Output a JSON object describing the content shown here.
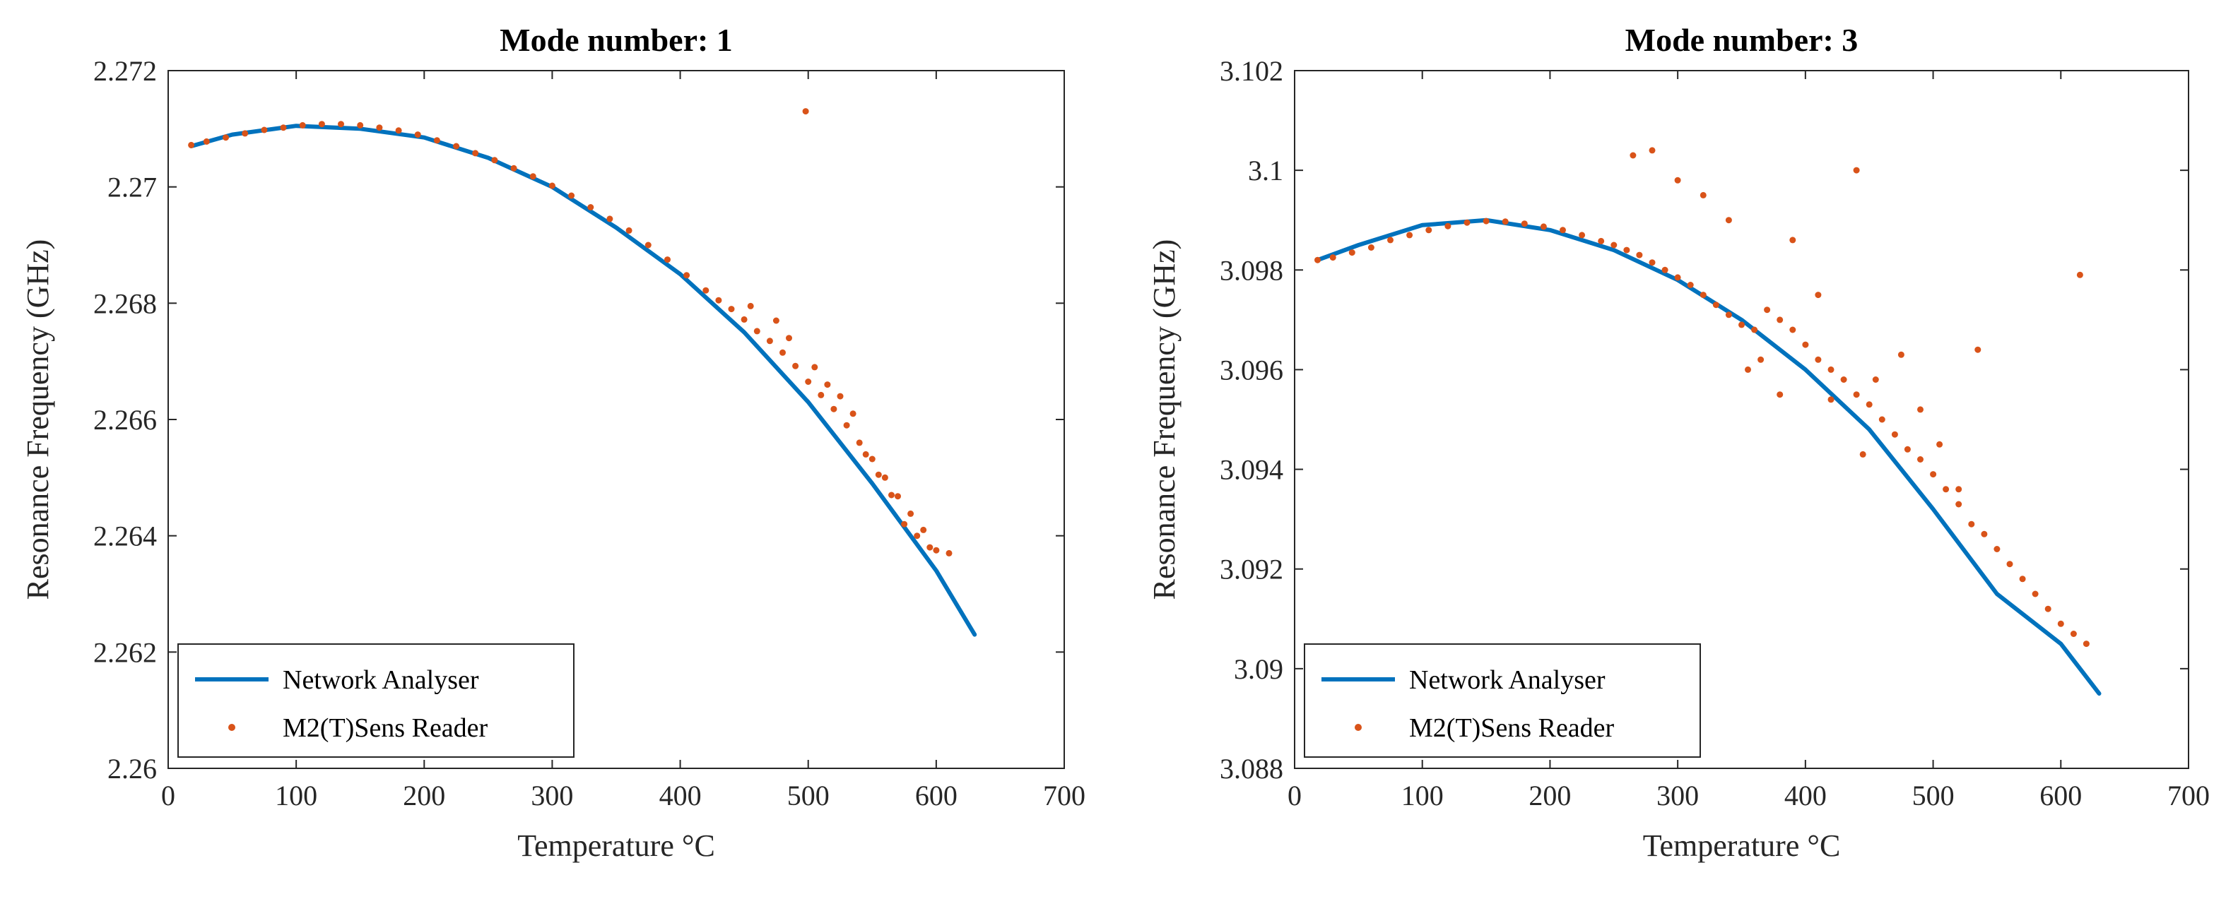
{
  "chart_data": [
    {
      "type": "line",
      "title": "Mode number: 1",
      "xlabel": "Temperature °C",
      "ylabel": "Resonance Frequency (GHz)",
      "xlim": [
        0,
        700
      ],
      "ylim": [
        2.26,
        2.272
      ],
      "xticks": [
        0,
        100,
        200,
        300,
        400,
        500,
        600,
        700
      ],
      "yticks": [
        "2.26",
        "2.262",
        "2.264",
        "2.266",
        "2.268",
        "2.27",
        "2.272"
      ],
      "grid": false,
      "legend_position": "bottom-left",
      "series": [
        {
          "name": "Network Analyser",
          "style": "line",
          "color": "#0072BD",
          "x": [
            18,
            50,
            100,
            150,
            200,
            250,
            300,
            350,
            400,
            450,
            500,
            550,
            600,
            630
          ],
          "y": [
            2.2707,
            2.2709,
            2.27105,
            2.271,
            2.27085,
            2.2705,
            2.27,
            2.2693,
            2.2685,
            2.2675,
            2.2663,
            2.2649,
            2.2634,
            2.2623
          ]
        },
        {
          "name": "M2(T)Sens Reader",
          "style": "scatter",
          "color": "#D95319",
          "x": [
            18,
            30,
            45,
            60,
            75,
            90,
            105,
            120,
            135,
            150,
            165,
            180,
            195,
            210,
            225,
            240,
            255,
            270,
            285,
            300,
            315,
            330,
            345,
            360,
            375,
            390,
            405,
            420,
            430,
            440,
            450,
            460,
            470,
            480,
            490,
            500,
            510,
            520,
            530,
            540,
            550,
            560,
            570,
            580,
            590,
            600,
            610,
            498,
            455,
            475,
            485,
            505,
            515,
            525,
            535,
            545,
            555,
            565,
            575,
            585,
            595
          ],
          "y": [
            2.27072,
            2.27078,
            2.27085,
            2.27092,
            2.27098,
            2.27102,
            2.27106,
            2.27108,
            2.27108,
            2.27106,
            2.27102,
            2.27097,
            2.2709,
            2.2708,
            2.2707,
            2.27058,
            2.27046,
            2.27032,
            2.27018,
            2.27002,
            2.26985,
            2.26965,
            2.26945,
            2.26925,
            2.269,
            2.26875,
            2.26848,
            2.26822,
            2.26805,
            2.2679,
            2.26772,
            2.26752,
            2.26735,
            2.26715,
            2.26692,
            2.26665,
            2.26642,
            2.26618,
            2.2659,
            2.2656,
            2.26532,
            2.265,
            2.26468,
            2.26438,
            2.2641,
            2.26375,
            2.2637,
            2.2713,
            2.26795,
            2.2677,
            2.2674,
            2.2669,
            2.2666,
            2.2664,
            2.2661,
            2.2654,
            2.26505,
            2.2647,
            2.2642,
            2.264,
            2.2638
          ]
        }
      ]
    },
    {
      "type": "line",
      "title": "Mode number: 3",
      "xlabel": "Temperature °C",
      "ylabel": "Resonance Frequency (GHz)",
      "xlim": [
        0,
        700
      ],
      "ylim": [
        3.088,
        3.102
      ],
      "xticks": [
        0,
        100,
        200,
        300,
        400,
        500,
        600,
        700
      ],
      "yticks": [
        "3.088",
        "3.09",
        "3.092",
        "3.094",
        "3.096",
        "3.098",
        "3.1",
        "3.102"
      ],
      "grid": false,
      "legend_position": "bottom-left",
      "series": [
        {
          "name": "Network Analyser",
          "style": "line",
          "color": "#0072BD",
          "x": [
            18,
            50,
            100,
            150,
            200,
            250,
            300,
            350,
            400,
            450,
            500,
            550,
            600,
            630
          ],
          "y": [
            3.0982,
            3.0985,
            3.0989,
            3.099,
            3.0988,
            3.0984,
            3.0978,
            3.097,
            3.096,
            3.0948,
            3.0932,
            3.0915,
            3.0905,
            3.0895
          ]
        },
        {
          "name": "M2(T)Sens Reader",
          "style": "scatter",
          "color": "#D95319",
          "x": [
            18,
            30,
            45,
            60,
            75,
            90,
            105,
            120,
            135,
            150,
            165,
            180,
            195,
            210,
            225,
            240,
            250,
            260,
            270,
            280,
            290,
            300,
            310,
            320,
            330,
            340,
            350,
            360,
            370,
            380,
            390,
            400,
            410,
            420,
            430,
            440,
            450,
            460,
            470,
            480,
            490,
            500,
            510,
            520,
            530,
            540,
            550,
            560,
            570,
            580,
            590,
            600,
            610,
            620,
            265,
            280,
            300,
            320,
            340,
            355,
            365,
            380,
            390,
            410,
            420,
            440,
            445,
            455,
            475,
            490,
            505,
            520,
            535,
            615
          ],
          "y": [
            3.0982,
            3.09825,
            3.09835,
            3.09845,
            3.0986,
            3.0987,
            3.0988,
            3.09888,
            3.09895,
            3.09898,
            3.09897,
            3.09893,
            3.09887,
            3.0988,
            3.0987,
            3.09858,
            3.0985,
            3.0984,
            3.0983,
            3.09815,
            3.098,
            3.09785,
            3.0977,
            3.0975,
            3.0973,
            3.0971,
            3.0969,
            3.0968,
            3.0972,
            3.097,
            3.0968,
            3.0965,
            3.0962,
            3.096,
            3.0958,
            3.0955,
            3.0953,
            3.095,
            3.0947,
            3.0944,
            3.0942,
            3.0939,
            3.0936,
            3.0933,
            3.0929,
            3.0927,
            3.0924,
            3.0921,
            3.0918,
            3.0915,
            3.0912,
            3.0909,
            3.0907,
            3.0905,
            3.1003,
            3.1004,
            3.0998,
            3.0995,
            3.099,
            3.096,
            3.0962,
            3.0955,
            3.0986,
            3.0975,
            3.0954,
            3.1,
            3.0943,
            3.0958,
            3.0963,
            3.0952,
            3.0945,
            3.0936,
            3.0964,
            3.0979
          ]
        }
      ]
    }
  ]
}
